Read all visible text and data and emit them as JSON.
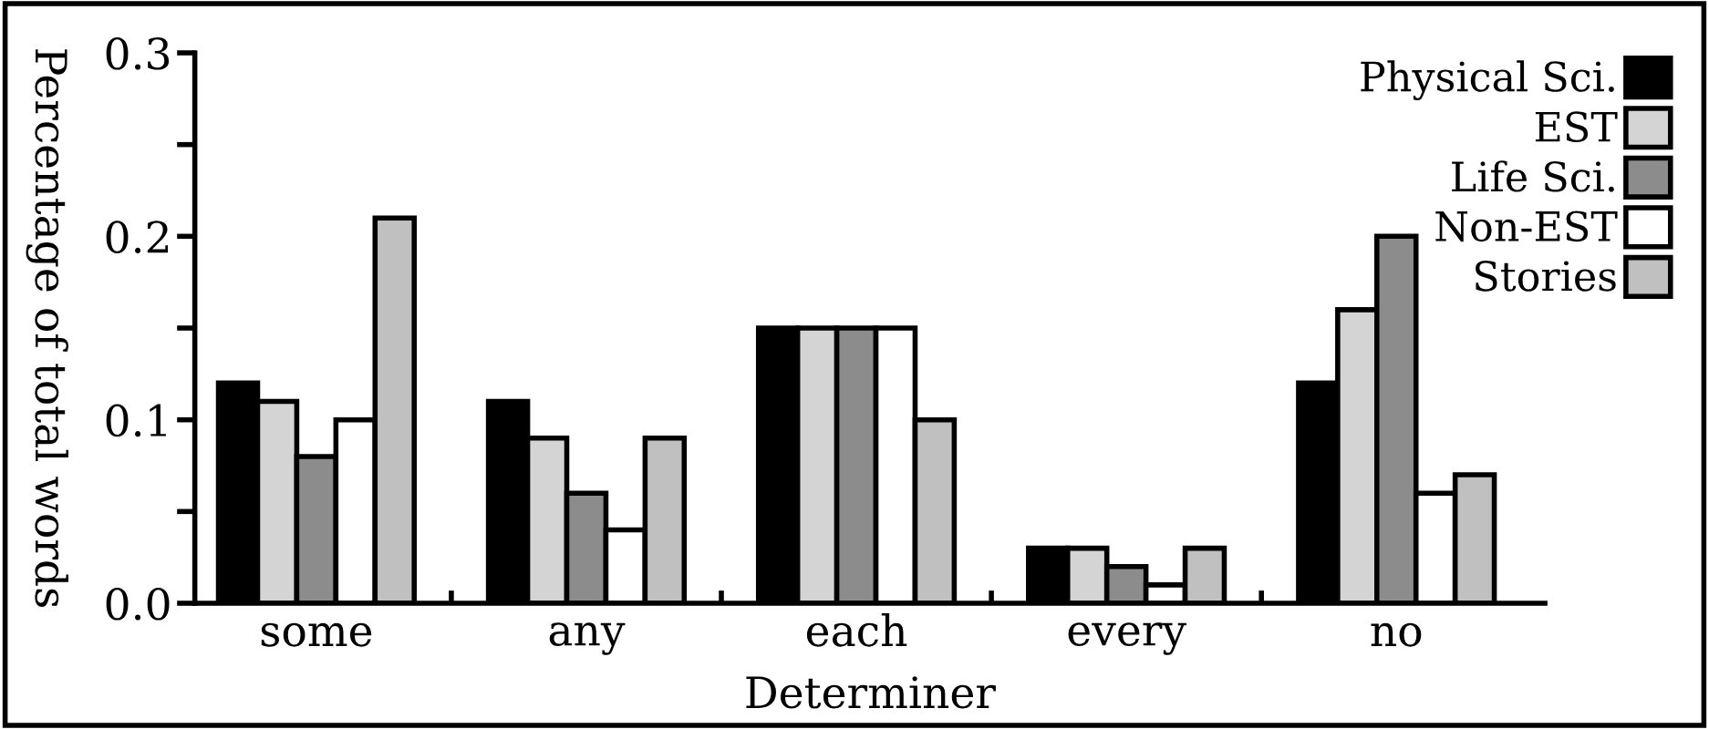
{
  "chart_data": {
    "type": "bar",
    "xlabel": "Determiner",
    "ylabel": "Percentage of total words",
    "categories": [
      "some",
      "any",
      "each",
      "every",
      "no"
    ],
    "series": [
      {
        "name": "Physical Sci.",
        "color": "#000000",
        "values": [
          0.12,
          0.11,
          0.15,
          0.03,
          0.12
        ]
      },
      {
        "name": "EST",
        "color": "#d4d4d4",
        "values": [
          0.11,
          0.09,
          0.15,
          0.03,
          0.16
        ]
      },
      {
        "name": "Life Sci.",
        "color": "#8c8c8c",
        "values": [
          0.08,
          0.06,
          0.15,
          0.02,
          0.2
        ]
      },
      {
        "name": "Non-EST",
        "color": "#ffffff",
        "values": [
          0.1,
          0.04,
          0.15,
          0.01,
          0.06
        ]
      },
      {
        "name": "Stories",
        "color": "#c0c0c0",
        "values": [
          0.21,
          0.09,
          0.1,
          0.03,
          0.07
        ]
      }
    ],
    "ylim": [
      0,
      0.3
    ],
    "yticks": [
      {
        "value": 0,
        "label": "0.0"
      },
      {
        "value": 0.05,
        "label": null
      },
      0.1,
      {
        "value": 0.15,
        "label": null
      },
      0.2,
      {
        "value": 0.25,
        "label": null
      },
      0.3
    ],
    "legend": "top right",
    "grid": false
  }
}
